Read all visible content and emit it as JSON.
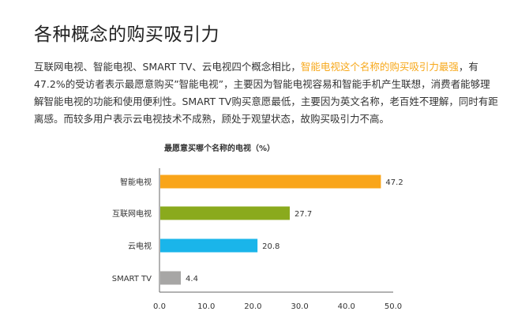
{
  "page": {
    "title": "各种概念的购买吸引力",
    "intro_part1": "互联网电视、智能电视、SMART TV、云电视四个概念相比，",
    "intro_highlight": "智能电视这个名称的购买吸引力最强",
    "intro_part2": "，有47.2%的受访者表示最愿意购买”智能电视”，主要因为智能电视容易和智能手机产生联想，消费者能够理解智能电视的功能和使用便利性。SMART TV购买意愿最低，主要因为英文名称，老百姓不理解，同时有距离感。而较多用户表示云电视技术不成熟，顾处于观望状态，故购买吸引力不高。"
  },
  "chart_data": {
    "type": "bar",
    "orientation": "horizontal",
    "title": "最愿意买哪个名称的电视（%）",
    "categories": [
      "智能电视",
      "互联网电视",
      "云电视",
      "SMART TV"
    ],
    "values": [
      47.2,
      27.7,
      20.8,
      4.4
    ],
    "value_labels": [
      "47.2",
      "27.7",
      "20.8",
      "4.4"
    ],
    "colors": [
      "#f9a51a",
      "#8aaa1d",
      "#1ab5ea",
      "#a7a6a5"
    ],
    "xlim": [
      0,
      50
    ],
    "xticks": [
      "0.0",
      "10.0",
      "20.0",
      "30.0",
      "40.0",
      "50.0"
    ],
    "xlabel": "",
    "ylabel": "",
    "grid": false,
    "legend": "none"
  }
}
